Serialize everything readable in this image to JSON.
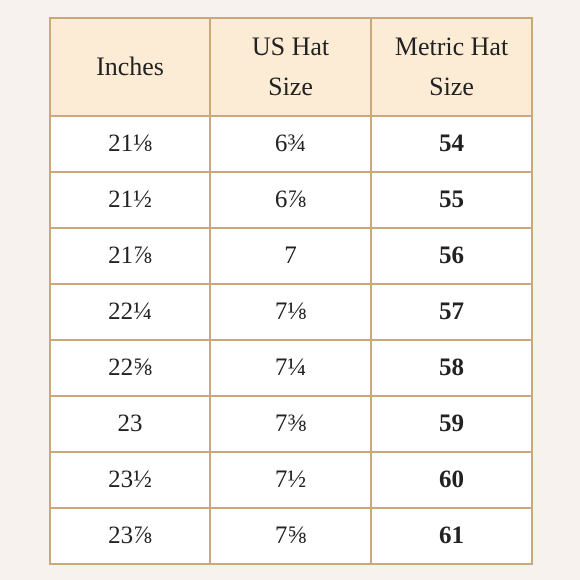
{
  "table": {
    "headers": {
      "inches": "Inches",
      "us": "US Hat Size",
      "metric": "Metric Hat Size"
    },
    "rows": [
      {
        "inches": "21⅛",
        "us": "6¾",
        "metric": "54"
      },
      {
        "inches": "21½",
        "us": "6⅞",
        "metric": "55"
      },
      {
        "inches": "21⅞",
        "us": "7",
        "metric": "56"
      },
      {
        "inches": "22¼",
        "us": "7⅛",
        "metric": "57"
      },
      {
        "inches": "22⅝",
        "us": "7¼",
        "metric": "58"
      },
      {
        "inches": "23",
        "us": "7⅜",
        "metric": "59"
      },
      {
        "inches": "23½",
        "us": "7½",
        "metric": "60"
      },
      {
        "inches": "23⅞",
        "us": "7⅝",
        "metric": "61"
      }
    ]
  }
}
